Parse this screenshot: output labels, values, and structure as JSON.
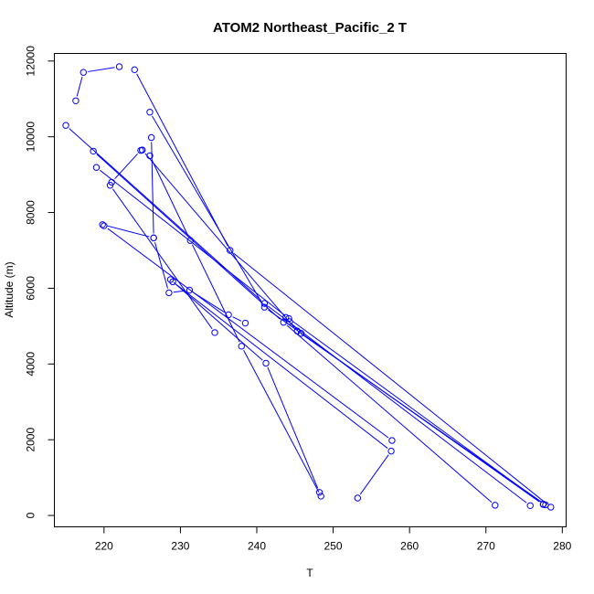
{
  "chart_data": {
    "type": "line",
    "title": "ATOM2 Northeast_Pacific_2 T",
    "xlabel": "T",
    "ylabel": "Altitude (m)",
    "xlim": [
      213.5,
      280.5
    ],
    "ylim": [
      -300,
      12200
    ],
    "x_ticks": [
      220,
      230,
      240,
      250,
      260,
      270,
      280
    ],
    "y_ticks": [
      0,
      2000,
      4000,
      6000,
      8000,
      10000,
      12000
    ],
    "grid": false,
    "series_color": "#0000ff",
    "series": [
      {
        "points": [
          [
            222.0,
            11850
          ],
          [
            217.3,
            11700
          ],
          [
            216.3,
            10950
          ]
        ]
      },
      {
        "points": [
          [
            224.0,
            11770
          ],
          [
            236.5,
            7000
          ],
          [
            278.5,
            220
          ]
        ]
      },
      {
        "points": [
          [
            215.0,
            10300
          ],
          [
            241.0,
            5600
          ],
          [
            275.8,
            260
          ]
        ]
      },
      {
        "points": [
          [
            226.0,
            10650
          ],
          [
            241.0,
            5500
          ],
          [
            277.5,
            290
          ]
        ]
      },
      {
        "points": [
          [
            218.6,
            9620
          ],
          [
            243.5,
            5100
          ],
          [
            271.2,
            270
          ]
        ]
      },
      {
        "points": [
          [
            219.0,
            9190
          ],
          [
            244.2,
            5200
          ],
          [
            277.5,
            300
          ]
        ]
      },
      {
        "points": [
          [
            225.0,
            9650
          ],
          [
            245.3,
            4870
          ],
          [
            277.8,
            280
          ]
        ]
      },
      {
        "points": [
          [
            221.0,
            8800
          ],
          [
            224.8,
            9640
          ],
          [
            225.0,
            9650
          ]
        ]
      },
      {
        "points": [
          [
            220.8,
            8720
          ],
          [
            234.5,
            4830
          ]
        ]
      },
      {
        "points": [
          [
            226.2,
            9980
          ],
          [
            226.5,
            7330
          ],
          [
            228.5,
            5880
          ],
          [
            231.2,
            5950
          ],
          [
            236.3,
            5300
          ],
          [
            238.5,
            5080
          ]
        ]
      },
      {
        "points": [
          [
            226.0,
            9500
          ],
          [
            231.3,
            7260
          ],
          [
            238.0,
            4470
          ],
          [
            248.4,
            510
          ]
        ]
      },
      {
        "points": [
          [
            219.8,
            7680
          ],
          [
            226.5,
            7330
          ]
        ]
      },
      {
        "points": [
          [
            220.0,
            7650
          ],
          [
            257.7,
            1980
          ]
        ]
      },
      {
        "points": [
          [
            228.7,
            6230
          ],
          [
            241.2,
            4020
          ],
          [
            248.2,
            610
          ]
        ]
      },
      {
        "points": [
          [
            229.0,
            6170
          ],
          [
            257.6,
            1700
          ],
          [
            253.2,
            460
          ]
        ]
      },
      {
        "points": [
          [
            243.8,
            5230
          ],
          [
            244.3,
            5120
          ],
          [
            245.8,
            4810
          ]
        ]
      }
    ]
  }
}
